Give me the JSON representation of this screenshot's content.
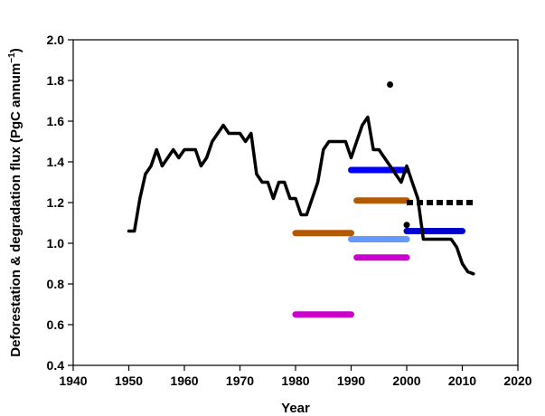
{
  "chart_data": {
    "type": "line",
    "title": "",
    "xlabel": "Year",
    "ylabel_main": "Deforestation & degradation flux (PgC annum",
    "ylabel_sup": "−1",
    "ylabel_end": ")",
    "xlim": [
      1940,
      2020
    ],
    "ylim": [
      0.4,
      2.0
    ],
    "x_ticks": [
      1940,
      1950,
      1960,
      1970,
      1980,
      1990,
      2000,
      2010,
      2020
    ],
    "x_tick_labels": [
      "1940",
      "1950",
      "1960",
      "1970",
      "1980",
      "1990",
      "2000",
      "2010",
      "2020"
    ],
    "y_ticks": [
      0.4,
      0.6,
      0.8,
      1.0,
      1.2,
      1.4,
      1.6,
      1.8,
      2.0
    ],
    "y_tick_labels": [
      "0.4",
      "0.6",
      "0.8",
      "1.0",
      "1.2",
      "1.4",
      "1.6",
      "1.8",
      "2.0"
    ],
    "grid": false,
    "legend": "none",
    "main_series": {
      "color": "#000000",
      "x": [
        1950,
        1951,
        1952,
        1953,
        1954,
        1955,
        1956,
        1957,
        1958,
        1959,
        1960,
        1961,
        1962,
        1963,
        1964,
        1965,
        1966,
        1967,
        1968,
        1969,
        1970,
        1971,
        1972,
        1973,
        1974,
        1975,
        1976,
        1977,
        1978,
        1979,
        1980,
        1981,
        1982,
        1983,
        1984,
        1985,
        1986,
        1987,
        1988,
        1989,
        1990,
        1991,
        1992,
        1993,
        1994,
        1995,
        1996,
        1997,
        1998,
        1999,
        2000,
        2001,
        2002,
        2003,
        2004,
        2005,
        2006,
        2007,
        2008,
        2009,
        2010,
        2011,
        2012
      ],
      "y": [
        1.06,
        1.06,
        1.22,
        1.34,
        1.38,
        1.46,
        1.38,
        1.42,
        1.46,
        1.42,
        1.46,
        1.46,
        1.46,
        1.38,
        1.42,
        1.5,
        1.54,
        1.58,
        1.54,
        1.54,
        1.54,
        1.5,
        1.54,
        1.34,
        1.3,
        1.3,
        1.22,
        1.3,
        1.3,
        1.22,
        1.22,
        1.14,
        1.14,
        1.22,
        1.3,
        1.46,
        1.5,
        1.5,
        1.5,
        1.5,
        1.42,
        1.5,
        1.58,
        1.62,
        1.46,
        1.46,
        1.42,
        1.38,
        1.34,
        1.3,
        1.38,
        1.3,
        1.22,
        1.02,
        1.02,
        1.02,
        1.02,
        1.02,
        1.02,
        0.98,
        0.9,
        0.86,
        0.85
      ]
    },
    "period_estimates": [
      {
        "color": "#cc00cc",
        "x_start": 1980,
        "x_end": 1990,
        "value": 0.65
      },
      {
        "color": "#b35900",
        "x_start": 1980,
        "x_end": 1990,
        "value": 1.05
      },
      {
        "color": "#0000ff",
        "x_start": 1990,
        "x_end": 2000,
        "value": 1.36
      },
      {
        "color": "#b35900",
        "x_start": 1991,
        "x_end": 2000,
        "value": 1.21
      },
      {
        "color": "#6699ff",
        "x_start": 1990,
        "x_end": 2000,
        "value": 1.02
      },
      {
        "color": "#cc00cc",
        "x_start": 1991,
        "x_end": 2000,
        "value": 0.93
      },
      {
        "color": "#0000cc",
        "x_start": 2000,
        "x_end": 2010,
        "value": 1.06
      }
    ],
    "dashed_series": [
      {
        "color": "#000000",
        "x_start": 2000,
        "x_end": 2012,
        "value": 1.2
      }
    ],
    "points": [
      {
        "color": "#000000",
        "x": 1997,
        "y": 1.78
      },
      {
        "color": "#000000",
        "x": 2000,
        "y": 1.09
      }
    ]
  }
}
